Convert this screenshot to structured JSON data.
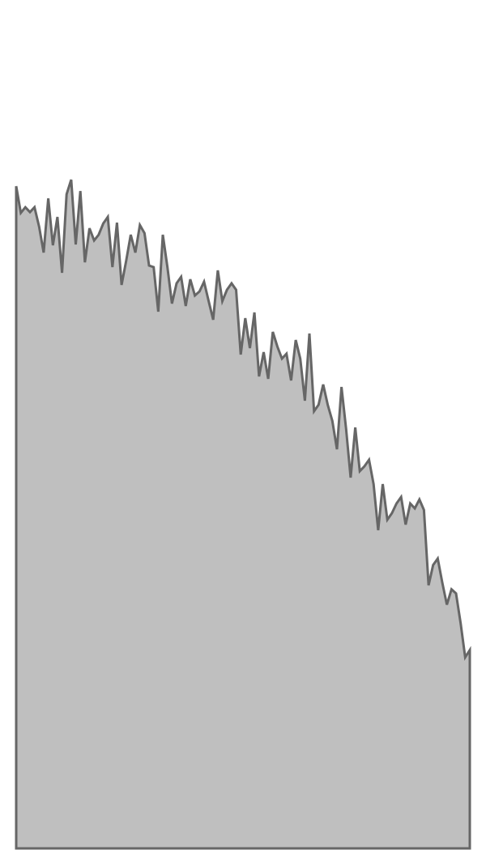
{
  "chart_data": {
    "type": "area",
    "values": [
      818,
      785,
      792,
      786,
      792,
      768,
      736,
      803,
      745,
      780,
      711,
      808,
      826,
      746,
      812,
      724,
      766,
      751,
      758,
      772,
      780,
      718,
      773,
      696,
      726,
      758,
      736,
      770,
      760,
      720,
      718,
      663,
      758,
      718,
      673,
      698,
      706,
      670,
      703,
      683,
      688,
      700,
      676,
      653,
      714,
      676,
      690,
      698,
      690,
      610,
      655,
      618,
      662,
      583,
      613,
      580,
      638,
      620,
      605,
      611,
      578,
      628,
      605,
      553,
      636,
      540,
      548,
      573,
      548,
      528,
      493,
      570,
      518,
      458,
      520,
      466,
      472,
      480,
      450,
      393,
      450,
      406,
      414,
      426,
      434,
      400,
      426,
      420,
      431,
      418,
      325,
      350,
      358,
      328,
      301,
      320,
      315,
      278,
      236,
      245
    ],
    "color": "#bfbfbf",
    "line_color": "#666666",
    "ylim": [
      0,
      1048
    ]
  }
}
